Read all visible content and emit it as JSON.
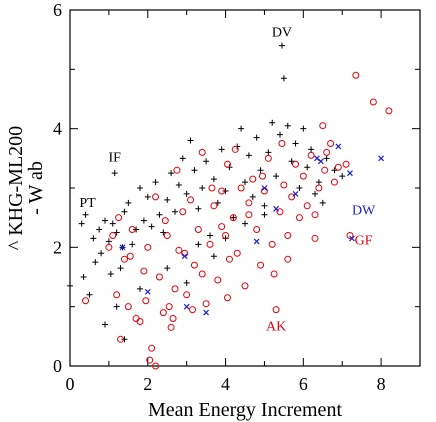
{
  "chart_data": {
    "type": "scatter",
    "xlabel": "Mean Energy Increment",
    "ylabel_line1": "^ KHG-ML200",
    "ylabel_line2": "- W ab",
    "xlim": [
      0,
      9
    ],
    "ylim": [
      0,
      6
    ],
    "x_ticks": [
      0,
      2,
      4,
      6,
      8
    ],
    "y_ticks": [
      0,
      2,
      4,
      6
    ],
    "x_tick_labels": [
      "0",
      "2",
      "4",
      "6",
      "8"
    ],
    "y_tick_labels": [
      "0",
      "2",
      "4",
      "6"
    ],
    "grid": false,
    "colors": {
      "plus": "#000000",
      "circle": "#e8000b",
      "cross": "#1f1fcf"
    },
    "series": [
      {
        "marker": "plus",
        "color": "#000000",
        "points": [
          [
            0.0,
            1.35
          ],
          [
            0.3,
            2.4
          ],
          [
            0.35,
            1.5
          ],
          [
            0.4,
            2.55
          ],
          [
            0.6,
            2.15
          ],
          [
            0.65,
            1.75
          ],
          [
            0.75,
            2.3
          ],
          [
            0.8,
            1.9
          ],
          [
            0.9,
            2.45
          ],
          [
            1.0,
            2.1
          ],
          [
            1.05,
            1.55
          ],
          [
            1.1,
            2.4
          ],
          [
            1.15,
            3.25
          ],
          [
            1.2,
            2.25
          ],
          [
            1.3,
            1.65
          ],
          [
            1.35,
            2.0
          ],
          [
            1.4,
            2.6
          ],
          [
            1.5,
            2.75
          ],
          [
            1.6,
            2.05
          ],
          [
            1.7,
            2.3
          ],
          [
            1.8,
            3.0
          ],
          [
            1.9,
            2.45
          ],
          [
            2.0,
            2.85
          ],
          [
            2.1,
            2.35
          ],
          [
            2.2,
            3.1
          ],
          [
            2.3,
            2.55
          ],
          [
            2.4,
            2.25
          ],
          [
            2.5,
            2.8
          ],
          [
            2.6,
            3.25
          ],
          [
            2.7,
            2.6
          ],
          [
            2.8,
            3.05
          ],
          [
            2.9,
            3.5
          ],
          [
            3.0,
            2.9
          ],
          [
            3.1,
            3.8
          ],
          [
            3.2,
            3.3
          ],
          [
            3.3,
            2.65
          ],
          [
            3.4,
            3.0
          ],
          [
            3.5,
            3.45
          ],
          [
            3.6,
            2.2
          ],
          [
            3.7,
            3.15
          ],
          [
            3.8,
            2.75
          ],
          [
            3.9,
            3.65
          ],
          [
            4.0,
            2.95
          ],
          [
            4.1,
            3.35
          ],
          [
            4.2,
            2.5
          ],
          [
            4.3,
            3.7
          ],
          [
            4.4,
            4.0
          ],
          [
            4.5,
            3.1
          ],
          [
            4.6,
            3.55
          ],
          [
            4.7,
            2.85
          ],
          [
            4.8,
            3.85
          ],
          [
            4.9,
            3.3
          ],
          [
            5.0,
            2.7
          ],
          [
            5.1,
            3.6
          ],
          [
            5.2,
            4.1
          ],
          [
            5.3,
            3.2
          ],
          [
            5.4,
            3.9
          ],
          [
            5.45,
            5.4
          ],
          [
            5.5,
            4.85
          ],
          [
            5.6,
            4.05
          ],
          [
            5.7,
            3.45
          ],
          [
            5.8,
            3.75
          ],
          [
            5.9,
            3.0
          ],
          [
            6.0,
            4.0
          ],
          [
            6.1,
            3.35
          ],
          [
            6.2,
            3.65
          ],
          [
            6.3,
            2.9
          ],
          [
            6.4,
            3.1
          ],
          [
            6.5,
            2.75
          ],
          [
            6.6,
            3.5
          ],
          [
            6.8,
            3.3
          ],
          [
            7.0,
            3.2
          ],
          [
            0.5,
            1.2
          ],
          [
            0.9,
            0.7
          ],
          [
            1.2,
            1.0
          ],
          [
            1.4,
            0.45
          ],
          [
            1.8,
            1.3
          ],
          [
            2.5,
            1.65
          ],
          [
            3.0,
            1.4
          ],
          [
            3.3,
            2.05
          ],
          [
            3.7,
            1.85
          ],
          [
            4.0,
            2.15
          ],
          [
            4.5,
            2.4
          ],
          [
            5.0,
            2.55
          ]
        ]
      },
      {
        "marker": "circle",
        "color": "#e8000b",
        "points": [
          [
            0.4,
            1.1
          ],
          [
            1.0,
            2.0
          ],
          [
            1.1,
            2.2
          ],
          [
            1.2,
            1.2
          ],
          [
            1.3,
            0.45
          ],
          [
            1.4,
            1.8
          ],
          [
            1.5,
            1.0
          ],
          [
            1.6,
            2.3
          ],
          [
            1.7,
            0.8
          ],
          [
            1.8,
            0.75
          ],
          [
            1.9,
            1.6
          ],
          [
            2.0,
            2.0
          ],
          [
            2.05,
            0.1
          ],
          [
            2.1,
            0.3
          ],
          [
            2.2,
            0.0
          ],
          [
            2.3,
            1.5
          ],
          [
            2.4,
            0.9
          ],
          [
            2.5,
            2.2
          ],
          [
            2.6,
            0.65
          ],
          [
            2.65,
            0.8
          ],
          [
            2.7,
            1.3
          ],
          [
            2.8,
            1.95
          ],
          [
            2.9,
            2.6
          ],
          [
            3.0,
            1.2
          ],
          [
            3.1,
            2.8
          ],
          [
            3.2,
            1.7
          ],
          [
            3.3,
            2.3
          ],
          [
            3.4,
            3.6
          ],
          [
            3.5,
            1.05
          ],
          [
            3.6,
            2.05
          ],
          [
            3.7,
            2.7
          ],
          [
            3.8,
            1.45
          ],
          [
            3.9,
            2.95
          ],
          [
            4.0,
            2.2
          ],
          [
            4.05,
            3.4
          ],
          [
            4.1,
            1.8
          ],
          [
            4.2,
            2.5
          ],
          [
            4.3,
            1.9
          ],
          [
            4.4,
            3.0
          ],
          [
            4.5,
            1.35
          ],
          [
            4.6,
            2.75
          ],
          [
            4.7,
            3.15
          ],
          [
            4.8,
            2.3
          ],
          [
            4.9,
            1.7
          ],
          [
            5.0,
            2.95
          ],
          [
            5.1,
            3.5
          ],
          [
            5.2,
            2.05
          ],
          [
            5.3,
            0.95
          ],
          [
            5.4,
            2.6
          ],
          [
            5.5,
            3.05
          ],
          [
            5.6,
            2.2
          ],
          [
            5.7,
            2.85
          ],
          [
            5.8,
            3.4
          ],
          [
            5.9,
            2.5
          ],
          [
            6.0,
            3.2
          ],
          [
            6.1,
            2.7
          ],
          [
            6.2,
            3.55
          ],
          [
            6.3,
            2.15
          ],
          [
            6.4,
            3.0
          ],
          [
            6.5,
            4.05
          ],
          [
            6.6,
            3.6
          ],
          [
            6.7,
            3.75
          ],
          [
            6.8,
            3.1
          ],
          [
            6.9,
            3.35
          ],
          [
            7.1,
            3.4
          ],
          [
            7.2,
            2.2
          ],
          [
            7.35,
            4.9
          ],
          [
            7.8,
            4.45
          ],
          [
            8.2,
            4.3
          ],
          [
            6.3,
            2.55
          ],
          [
            5.6,
            1.8
          ],
          [
            4.6,
            2.55
          ],
          [
            3.9,
            2.35
          ],
          [
            3.4,
            1.55
          ],
          [
            2.95,
            1.9
          ],
          [
            2.55,
            1.0
          ],
          [
            1.95,
            1.1
          ],
          [
            1.55,
            1.85
          ],
          [
            1.25,
            2.5
          ],
          [
            2.2,
            2.85
          ],
          [
            2.75,
            3.3
          ],
          [
            3.65,
            3.0
          ],
          [
            4.25,
            3.65
          ],
          [
            4.95,
            3.2
          ],
          [
            5.45,
            3.75
          ],
          [
            6.55,
            3.3
          ],
          [
            5.25,
            1.55
          ],
          [
            4.05,
            1.15
          ],
          [
            3.15,
            0.95
          ],
          [
            2.45,
            2.45
          ]
        ]
      },
      {
        "marker": "cross",
        "color": "#1f1fcf",
        "points": [
          [
            1.35,
            2.0
          ],
          [
            2.0,
            1.25
          ],
          [
            2.95,
            1.85
          ],
          [
            3.0,
            1.0
          ],
          [
            3.5,
            0.9
          ],
          [
            4.8,
            2.1
          ],
          [
            5.0,
            3.0
          ],
          [
            5.3,
            2.65
          ],
          [
            5.8,
            2.9
          ],
          [
            6.35,
            3.5
          ],
          [
            6.45,
            3.45
          ],
          [
            6.9,
            3.7
          ],
          [
            7.2,
            3.25
          ],
          [
            8.0,
            3.5
          ],
          [
            7.25,
            2.15
          ]
        ]
      }
    ],
    "annotations": [
      {
        "text": "DV",
        "x": 5.45,
        "y": 5.55,
        "color": "#000000"
      },
      {
        "text": "IF",
        "x": 1.15,
        "y": 3.45,
        "color": "#000000"
      },
      {
        "text": "PT",
        "x": 0.45,
        "y": 2.68,
        "color": "#000000"
      },
      {
        "text": "DW",
        "x": 7.55,
        "y": 2.55,
        "color": "#1f1fcf"
      },
      {
        "text": "GF",
        "x": 7.55,
        "y": 2.05,
        "color": "#e8000b"
      },
      {
        "text": "AK",
        "x": 5.3,
        "y": 0.6,
        "color": "#e8000b"
      }
    ]
  }
}
